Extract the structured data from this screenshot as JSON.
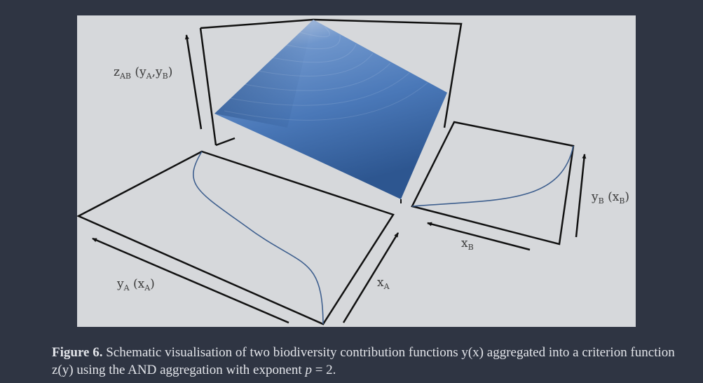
{
  "diagram": {
    "labels": {
      "z_ab": {
        "main": "z",
        "sub": "AB",
        "rest_open": " (y",
        "sub2": "A",
        "mid": ",y",
        "sub3": "B",
        "close": ")"
      },
      "y_a": {
        "main": "y",
        "sub": "A",
        "rest_open": " (x",
        "sub2": "A",
        "close": ")"
      },
      "x_a": {
        "main": "x",
        "sub": "A"
      },
      "x_b": {
        "main": "x",
        "sub": "B"
      },
      "y_b": {
        "main": "y",
        "sub": "B",
        "rest_open": " (x",
        "sub2": "B",
        "close": ")"
      }
    },
    "colors": {
      "panel_background": "#d6d8db",
      "page_background": "#2f3543",
      "surface_top": "#c9d2e2",
      "surface_mid": "#4f7fbf",
      "surface_dark": "#2c558f",
      "curve": "#3e5f8e",
      "frame": "#111111"
    }
  },
  "caption": {
    "figure_label": "Figure 6.",
    "text_part1": " Schematic visualisation of two biodiversity contribution functions y(x) aggregated into a criterion function z(y) using the AND aggregation with exponent ",
    "exponent_symbol": "p",
    "text_part2": " = 2."
  }
}
